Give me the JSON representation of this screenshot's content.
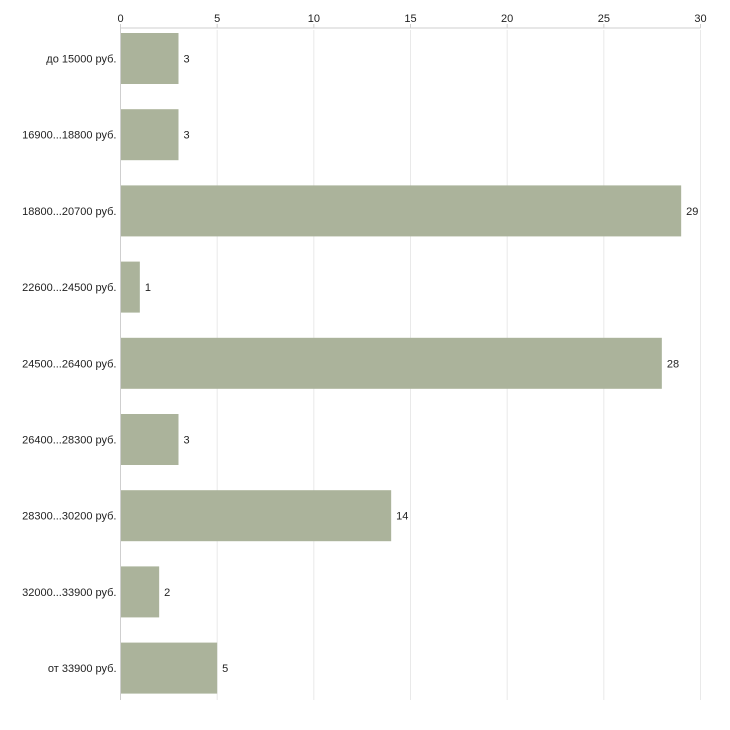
{
  "chart_data": {
    "type": "bar",
    "orientation": "horizontal",
    "title": "",
    "xlabel": "",
    "ylabel": "",
    "xlim": [
      0,
      30
    ],
    "x_ticks": [
      "0",
      "5",
      "10",
      "15",
      "20",
      "25",
      "30"
    ],
    "grid": true,
    "legend": "none",
    "bar_color": "#abb39b",
    "categories": [
      "до 15000 руб.",
      "16900...18800 руб.",
      "18800...20700 руб.",
      "22600...24500 руб.",
      "24500...26400 руб.",
      "26400...28300 руб.",
      "28300...30200 руб.",
      "32000...33900 руб.",
      "от 33900 руб."
    ],
    "values": [
      3,
      3,
      29,
      1,
      28,
      3,
      14,
      2,
      5
    ]
  }
}
